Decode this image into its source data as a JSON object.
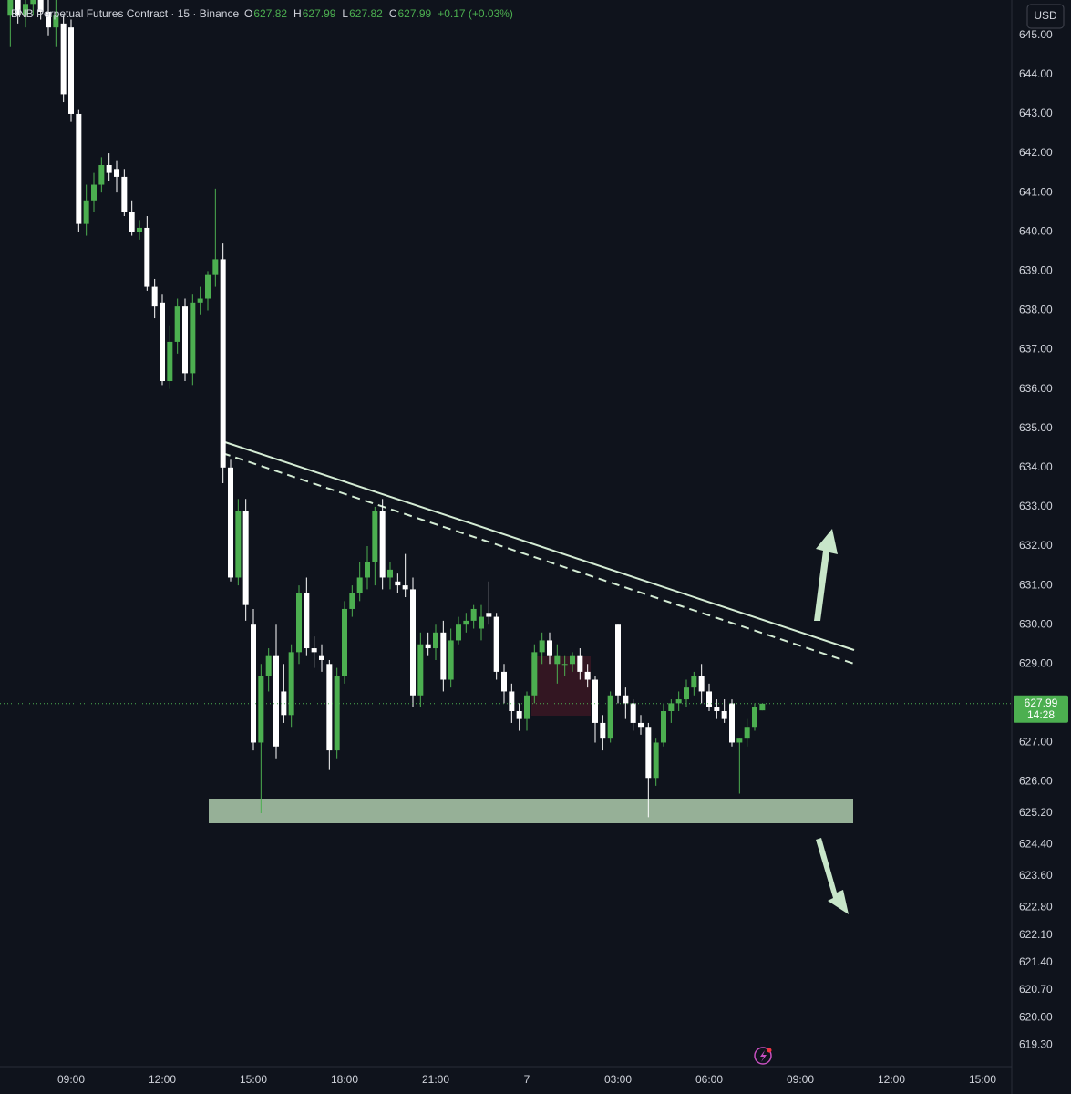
{
  "chart_data": {
    "type": "candlestick",
    "title": "BNB Perpetual Futures Contract · 15 · Binance",
    "ohlc_legend": [
      {
        "label": "O",
        "value": "627.82"
      },
      {
        "label": "H",
        "value": "627.99"
      },
      {
        "label": "L",
        "value": "627.82"
      },
      {
        "label": "C",
        "value": "627.99"
      }
    ],
    "change": "+0.17 (+0.03%)",
    "currency": "USD",
    "last_price": {
      "value": 627.99,
      "label": "627.99"
    },
    "countdown": "14:28",
    "up_color": "#4caf50",
    "down_color": "#ffffff",
    "open": [
      645.5,
      645.9,
      645.5,
      645.8,
      645.9,
      645.6,
      645.2,
      645.3,
      645.2,
      643.0,
      640.2,
      640.8,
      641.2,
      641.7,
      641.6,
      641.4,
      640.5,
      640.0,
      640.1,
      638.6,
      638.2,
      636.2,
      637.2,
      638.1,
      636.4,
      638.2,
      638.3,
      638.9,
      639.3,
      634.0,
      631.2,
      632.9,
      630.0,
      627.0,
      628.7,
      629.2,
      628.3,
      627.7,
      629.3,
      630.8,
      629.4,
      629.2,
      629.0,
      626.8,
      628.7,
      630.4,
      630.8,
      631.2,
      631.6,
      632.9,
      631.2,
      631.1,
      631.0,
      630.9,
      628.2,
      629.5,
      629.4,
      629.8,
      628.6,
      629.6,
      630.0,
      630.1,
      629.9,
      630.3,
      630.2,
      628.8,
      628.3,
      627.8,
      627.6,
      628.2,
      629.3,
      629.6,
      629.0,
      629.0,
      629.0,
      629.2,
      628.8,
      628.6,
      627.5,
      627.1,
      630.0,
      628.2,
      628.0,
      627.5,
      627.4,
      626.1,
      627.0,
      627.8,
      628.0,
      628.1,
      628.4,
      628.7,
      628.3,
      627.9,
      627.8,
      628.0,
      627.0,
      627.1,
      627.4,
      627.82
    ],
    "high": [
      646,
      646,
      646,
      646,
      646,
      646,
      645.9,
      645.5,
      645.4,
      643.1,
      641.2,
      641.5,
      641.9,
      642,
      641.8,
      641.6,
      640.8,
      640.3,
      640.4,
      638.8,
      638.4,
      637.6,
      638.3,
      638.3,
      638.4,
      638.6,
      639.0,
      641.1,
      639.7,
      634.2,
      633.2,
      633.2,
      630.4,
      629.0,
      629.4,
      630.0,
      629.0,
      629.5,
      631.0,
      631.2,
      629.7,
      629.5,
      629.1,
      628.9,
      630.6,
      631.0,
      631.6,
      632.0,
      633.0,
      633.2,
      631.6,
      631.3,
      631.8,
      631.2,
      629.8,
      629.8,
      630.0,
      630.1,
      629.9,
      630.2,
      630.3,
      630.5,
      630.5,
      631.1,
      630.3,
      629.0,
      628.5,
      628.0,
      628.3,
      629.5,
      629.8,
      629.8,
      629.5,
      629.2,
      629.3,
      629.4,
      629.0,
      628.7,
      627.7,
      628.3,
      630.0,
      628.4,
      628.1,
      627.7,
      627.5,
      627.1,
      628.0,
      628.1,
      628.3,
      628.6,
      628.8,
      629.0,
      628.5,
      628.1,
      628.1,
      628.1,
      627.1,
      627.6,
      628.0,
      627.99
    ],
    "low": [
      644.7,
      645.3,
      645.2,
      645.5,
      645.4,
      645.0,
      644.7,
      643.3,
      642.8,
      640.0,
      639.9,
      640.5,
      641.0,
      641.3,
      641.0,
      640.4,
      639.9,
      639.8,
      638.5,
      637.8,
      636.1,
      636.0,
      636.9,
      636.2,
      636.1,
      637.9,
      638.0,
      638.6,
      633.6,
      631.1,
      631.0,
      630.1,
      626.8,
      625.2,
      628.3,
      626.6,
      627.5,
      627.4,
      629.0,
      629.2,
      628.9,
      628.8,
      626.3,
      626.6,
      628.5,
      630.2,
      630.6,
      630.9,
      631.0,
      630.9,
      630.9,
      630.8,
      630.7,
      627.9,
      627.9,
      629.2,
      629.1,
      628.3,
      628.4,
      629.5,
      629.8,
      629.9,
      629.6,
      630.0,
      628.6,
      628.0,
      627.5,
      627.3,
      627.3,
      628.0,
      629.0,
      629.0,
      628.5,
      628.7,
      628.8,
      628.6,
      628.4,
      627.0,
      626.8,
      627.0,
      628.0,
      627.6,
      627.3,
      627.2,
      625.1,
      625.9,
      626.9,
      627.5,
      627.8,
      627.9,
      628.2,
      628.0,
      627.8,
      627.6,
      627.5,
      626.9,
      625.7,
      626.9,
      627.3,
      627.82
    ],
    "close": [
      645.9,
      645.5,
      645.8,
      645.9,
      645.6,
      645.2,
      645.5,
      643.5,
      643.0,
      640.2,
      640.8,
      641.2,
      641.7,
      641.5,
      641.4,
      640.5,
      640.0,
      640.1,
      638.6,
      638.1,
      636.2,
      637.2,
      638.1,
      636.4,
      638.2,
      638.3,
      638.9,
      639.3,
      634.0,
      631.2,
      632.9,
      630.5,
      627.0,
      628.7,
      629.2,
      626.9,
      627.7,
      629.3,
      630.8,
      629.4,
      629.3,
      629.1,
      626.8,
      628.7,
      630.4,
      630.8,
      631.2,
      631.6,
      632.9,
      631.2,
      631.4,
      631.0,
      630.9,
      628.2,
      629.5,
      629.4,
      629.8,
      628.6,
      629.6,
      630.0,
      630.1,
      630.4,
      630.2,
      630.2,
      628.8,
      628.3,
      627.8,
      627.6,
      628.2,
      629.3,
      629.6,
      629.2,
      629.2,
      629.0,
      629.2,
      628.8,
      628.6,
      627.5,
      627.1,
      628.2,
      628.2,
      628.0,
      627.5,
      627.4,
      626.1,
      627.0,
      627.8,
      628.0,
      628.1,
      628.4,
      628.7,
      628.3,
      627.9,
      627.8,
      627.6,
      627.0,
      627.1,
      627.4,
      627.9,
      627.99
    ],
    "ylim": [
      618.75,
      645.9
    ],
    "yticks": [
      {
        "value": 645,
        "label": "645.00"
      },
      {
        "value": 644,
        "label": "644.00"
      },
      {
        "value": 643,
        "label": "643.00"
      },
      {
        "value": 642,
        "label": "642.00"
      },
      {
        "value": 641,
        "label": "641.00"
      },
      {
        "value": 640,
        "label": "640.00"
      },
      {
        "value": 639,
        "label": "639.00"
      },
      {
        "value": 638,
        "label": "638.00"
      },
      {
        "value": 637,
        "label": "637.00"
      },
      {
        "value": 636,
        "label": "636.00"
      },
      {
        "value": 635,
        "label": "635.00"
      },
      {
        "value": 634,
        "label": "634.00"
      },
      {
        "value": 633,
        "label": "633.00"
      },
      {
        "value": 632,
        "label": "632.00"
      },
      {
        "value": 631,
        "label": "631.00"
      },
      {
        "value": 630,
        "label": "630.00"
      },
      {
        "value": 629,
        "label": "629.00"
      },
      {
        "value": 627,
        "label": "627.00"
      },
      {
        "value": 626,
        "label": "626.00"
      },
      {
        "value": 625.2,
        "label": "625.20"
      },
      {
        "value": 624.4,
        "label": "624.40"
      },
      {
        "value": 623.6,
        "label": "623.60"
      },
      {
        "value": 622.8,
        "label": "622.80"
      },
      {
        "value": 622.1,
        "label": "622.10"
      },
      {
        "value": 621.4,
        "label": "621.40"
      },
      {
        "value": 620.7,
        "label": "620.70"
      },
      {
        "value": 620,
        "label": "620.00"
      },
      {
        "value": 619.3,
        "label": "619.30"
      }
    ],
    "xlim": [
      -1.36,
      131.84
    ],
    "xticks": [
      {
        "value": 8,
        "label": "09:00"
      },
      {
        "value": 20,
        "label": "12:00"
      },
      {
        "value": 32,
        "label": "15:00"
      },
      {
        "value": 44,
        "label": "18:00"
      },
      {
        "value": 56,
        "label": "21:00"
      },
      {
        "value": 68,
        "label": "7"
      },
      {
        "value": 80,
        "label": "03:00"
      },
      {
        "value": 92,
        "label": "06:00"
      },
      {
        "value": 104,
        "label": "09:00"
      },
      {
        "value": 116,
        "label": "12:00"
      },
      {
        "value": 128,
        "label": "15:00"
      }
    ],
    "grid": false
  }
}
